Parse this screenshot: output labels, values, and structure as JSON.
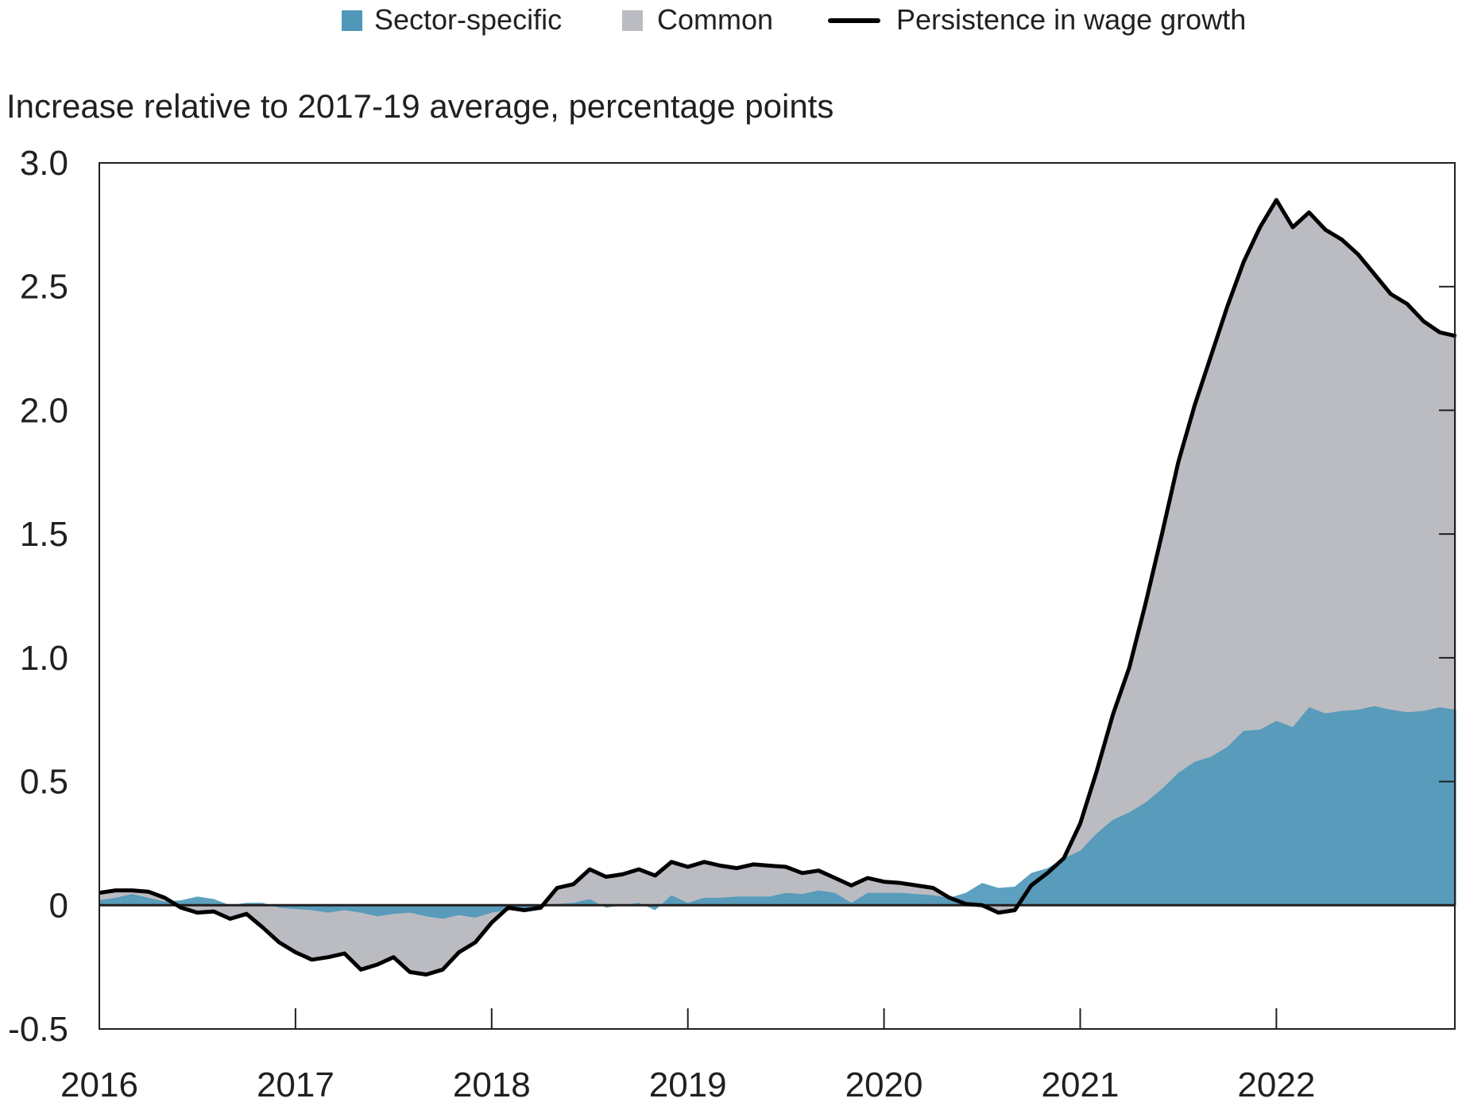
{
  "chart_data": {
    "type": "area",
    "title": "",
    "ylabel": "Increase relative to 2017-19 average, percentage points",
    "xlabel": "",
    "ylim": [
      -0.5,
      3.0
    ],
    "yticks": [
      "3.0",
      "2.5",
      "2.0",
      "1.5",
      "1.0",
      "0.5",
      "0",
      "-0.5"
    ],
    "ytick_values": [
      3.0,
      2.5,
      2.0,
      1.5,
      1.0,
      0.5,
      0,
      -0.5
    ],
    "xticks": [
      "2016",
      "2017",
      "2018",
      "2019",
      "2020",
      "2021",
      "2022"
    ],
    "x_start": "2016-01",
    "x_frequency": "monthly",
    "grid": false,
    "legend_position": "top",
    "legend": [
      {
        "name": "Sector-specific",
        "kind": "area",
        "color": "#4f98ba"
      },
      {
        "name": "Common",
        "kind": "area",
        "color": "#bbbcc1"
      },
      {
        "name": "Persistence in wage growth",
        "kind": "line",
        "color": "#000000"
      }
    ],
    "series": [
      {
        "name": "Persistence in wage growth",
        "values": [
          0.05,
          0.06,
          0.06,
          0.055,
          0.03,
          -0.01,
          -0.03,
          -0.025,
          -0.055,
          -0.035,
          -0.09,
          -0.15,
          -0.19,
          -0.22,
          -0.21,
          -0.195,
          -0.26,
          -0.24,
          -0.21,
          -0.27,
          -0.28,
          -0.26,
          -0.19,
          -0.15,
          -0.07,
          -0.01,
          -0.02,
          -0.01,
          0.07,
          0.085,
          0.145,
          0.115,
          0.125,
          0.145,
          0.12,
          0.175,
          0.155,
          0.175,
          0.16,
          0.15,
          0.165,
          0.16,
          0.155,
          0.13,
          0.14,
          0.11,
          0.08,
          0.11,
          0.095,
          0.09,
          0.08,
          0.07,
          0.03,
          0.005,
          0.0,
          -0.03,
          -0.02,
          0.08,
          0.13,
          0.19,
          0.33,
          0.54,
          0.77,
          0.96,
          1.22,
          1.5,
          1.79,
          2.02,
          2.22,
          2.42,
          2.6,
          2.74,
          2.85,
          2.74,
          2.8,
          2.73,
          2.69,
          2.63,
          2.55,
          2.47,
          2.43,
          2.36,
          2.315,
          2.3
        ]
      },
      {
        "name": "Sector-specific",
        "values": [
          0.02,
          0.03,
          0.045,
          0.03,
          0.015,
          0.02,
          0.035,
          0.025,
          0.0,
          0.01,
          0.01,
          -0.01,
          -0.015,
          -0.02,
          -0.03,
          -0.02,
          -0.03,
          -0.045,
          -0.035,
          -0.03,
          -0.045,
          -0.055,
          -0.04,
          -0.05,
          -0.03,
          -0.02,
          -0.02,
          -0.01,
          0.005,
          0.01,
          0.025,
          -0.01,
          0.0,
          0.01,
          -0.02,
          0.04,
          0.01,
          0.03,
          0.03,
          0.035,
          0.035,
          0.035,
          0.05,
          0.045,
          0.06,
          0.05,
          0.01,
          0.05,
          0.05,
          0.05,
          0.045,
          0.04,
          0.03,
          0.05,
          0.09,
          0.07,
          0.075,
          0.13,
          0.15,
          0.19,
          0.22,
          0.29,
          0.345,
          0.375,
          0.415,
          0.47,
          0.535,
          0.58,
          0.6,
          0.64,
          0.705,
          0.71,
          0.745,
          0.72,
          0.8,
          0.775,
          0.785,
          0.79,
          0.805,
          0.79,
          0.78,
          0.785,
          0.8,
          0.79
        ]
      }
    ]
  }
}
